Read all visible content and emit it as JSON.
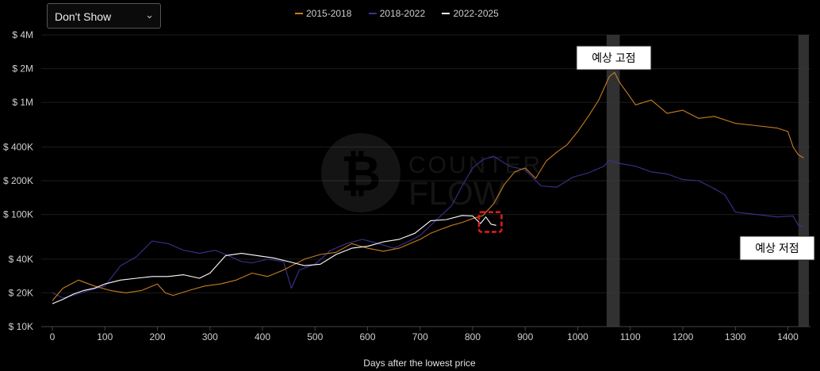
{
  "dropdown": {
    "selected": "Don't Show",
    "chevron_icon": "chevron-down-icon"
  },
  "watermark": {
    "logo_icon": "bitcoin-logo-icon",
    "text_line1": "COUNTER",
    "text_line2": "FLOW"
  },
  "annotations": {
    "peak_label": "예상 고점",
    "bottom_label": "예상 저점",
    "peak_band_days": [
      1055,
      1080
    ],
    "bottom_band_days": [
      1420,
      1440
    ],
    "highlight_box": {
      "x": [
        812,
        855
      ],
      "y_price": [
        70000,
        105000
      ]
    }
  },
  "colors": {
    "s2015": "#c77d22",
    "s2018": "#3b3290",
    "s2022": "#ffffff",
    "grid": "#1c1c1c",
    "axis": "#444444",
    "band": "#3a3a3a",
    "highlight": "#e11d1d"
  },
  "chart_data": {
    "type": "line",
    "xlabel": "Days after the lowest price",
    "ylabel": "",
    "y_scale": "log",
    "xlim": [
      0,
      1440
    ],
    "ylim": [
      10000,
      4000000
    ],
    "x_ticks": [
      0,
      100,
      200,
      300,
      400,
      500,
      600,
      700,
      800,
      900,
      1000,
      1100,
      1200,
      1300,
      1400
    ],
    "y_ticks": [
      {
        "value": 10000,
        "label": "$ 10K"
      },
      {
        "value": 20000,
        "label": "$ 20K"
      },
      {
        "value": 40000,
        "label": "$ 40K"
      },
      {
        "value": 100000,
        "label": "$ 100K"
      },
      {
        "value": 200000,
        "label": "$ 200K"
      },
      {
        "value": 400000,
        "label": "$ 400K"
      },
      {
        "value": 1000000,
        "label": "$ 1M"
      },
      {
        "value": 2000000,
        "label": "$ 2M"
      },
      {
        "value": 4000000,
        "label": "$ 4M"
      }
    ],
    "grid": true,
    "legend_position": "top-center",
    "series": [
      {
        "name": "2015-2018",
        "color": "#c77d22",
        "x": [
          0,
          20,
          50,
          80,
          110,
          140,
          170,
          200,
          215,
          230,
          260,
          290,
          320,
          350,
          380,
          410,
          440,
          480,
          510,
          540,
          570,
          600,
          630,
          660,
          700,
          720,
          740,
          760,
          780,
          800,
          820,
          840,
          860,
          880,
          900,
          920,
          940,
          960,
          980,
          1000,
          1020,
          1040,
          1060,
          1070,
          1080,
          1095,
          1110,
          1140,
          1170,
          1200,
          1230,
          1260,
          1300,
          1340,
          1380,
          1400,
          1410,
          1420,
          1430
        ],
        "y": [
          17000,
          22000,
          26000,
          23000,
          21000,
          20000,
          21000,
          24000,
          20000,
          19000,
          21000,
          23000,
          24000,
          26000,
          30000,
          28000,
          32000,
          40000,
          44000,
          46000,
          55000,
          50000,
          47000,
          50000,
          60000,
          68000,
          74000,
          80000,
          85000,
          92000,
          98000,
          125000,
          185000,
          240000,
          260000,
          210000,
          300000,
          360000,
          420000,
          550000,
          750000,
          1050000,
          1700000,
          1850000,
          1500000,
          1200000,
          950000,
          1050000,
          800000,
          850000,
          720000,
          750000,
          650000,
          620000,
          590000,
          550000,
          400000,
          340000,
          320000
        ]
      },
      {
        "name": "2018-2022",
        "color": "#3b3290",
        "x": [
          0,
          20,
          40,
          70,
          100,
          130,
          160,
          190,
          220,
          250,
          280,
          310,
          340,
          360,
          380,
          410,
          440,
          455,
          470,
          500,
          530,
          560,
          590,
          620,
          650,
          680,
          700,
          720,
          760,
          780,
          800,
          820,
          840,
          870,
          900,
          930,
          960,
          990,
          1020,
          1050,
          1060,
          1080,
          1110,
          1140,
          1170,
          1200,
          1230,
          1260,
          1280,
          1300,
          1340,
          1380,
          1410,
          1420,
          1430
        ],
        "y": [
          20000,
          18000,
          19000,
          21000,
          23000,
          35000,
          42000,
          58000,
          55000,
          48000,
          45000,
          48000,
          42000,
          38000,
          37000,
          40000,
          38000,
          22000,
          32000,
          36000,
          48000,
          55000,
          60000,
          55000,
          50000,
          58000,
          65000,
          80000,
          120000,
          180000,
          260000,
          310000,
          330000,
          270000,
          250000,
          180000,
          175000,
          215000,
          235000,
          270000,
          305000,
          285000,
          270000,
          240000,
          230000,
          205000,
          200000,
          170000,
          150000,
          105000,
          100000,
          95000,
          97000,
          80000,
          78000
        ]
      },
      {
        "name": "2022-2025",
        "color": "#ffffff",
        "x": [
          0,
          20,
          40,
          60,
          80,
          100,
          130,
          160,
          190,
          220,
          250,
          280,
          300,
          330,
          360,
          390,
          420,
          450,
          480,
          510,
          540,
          570,
          600,
          630,
          660,
          690,
          720,
          750,
          780,
          800,
          815,
          825,
          835,
          845
        ],
        "y": [
          16000,
          17500,
          19500,
          21000,
          22000,
          24000,
          26000,
          27000,
          28000,
          28000,
          29000,
          27000,
          30000,
          43000,
          45000,
          43000,
          41000,
          38000,
          35000,
          36000,
          44000,
          50000,
          52000,
          57000,
          60000,
          68000,
          88000,
          90000,
          98000,
          97000,
          83000,
          95000,
          82000,
          80000
        ]
      }
    ]
  }
}
